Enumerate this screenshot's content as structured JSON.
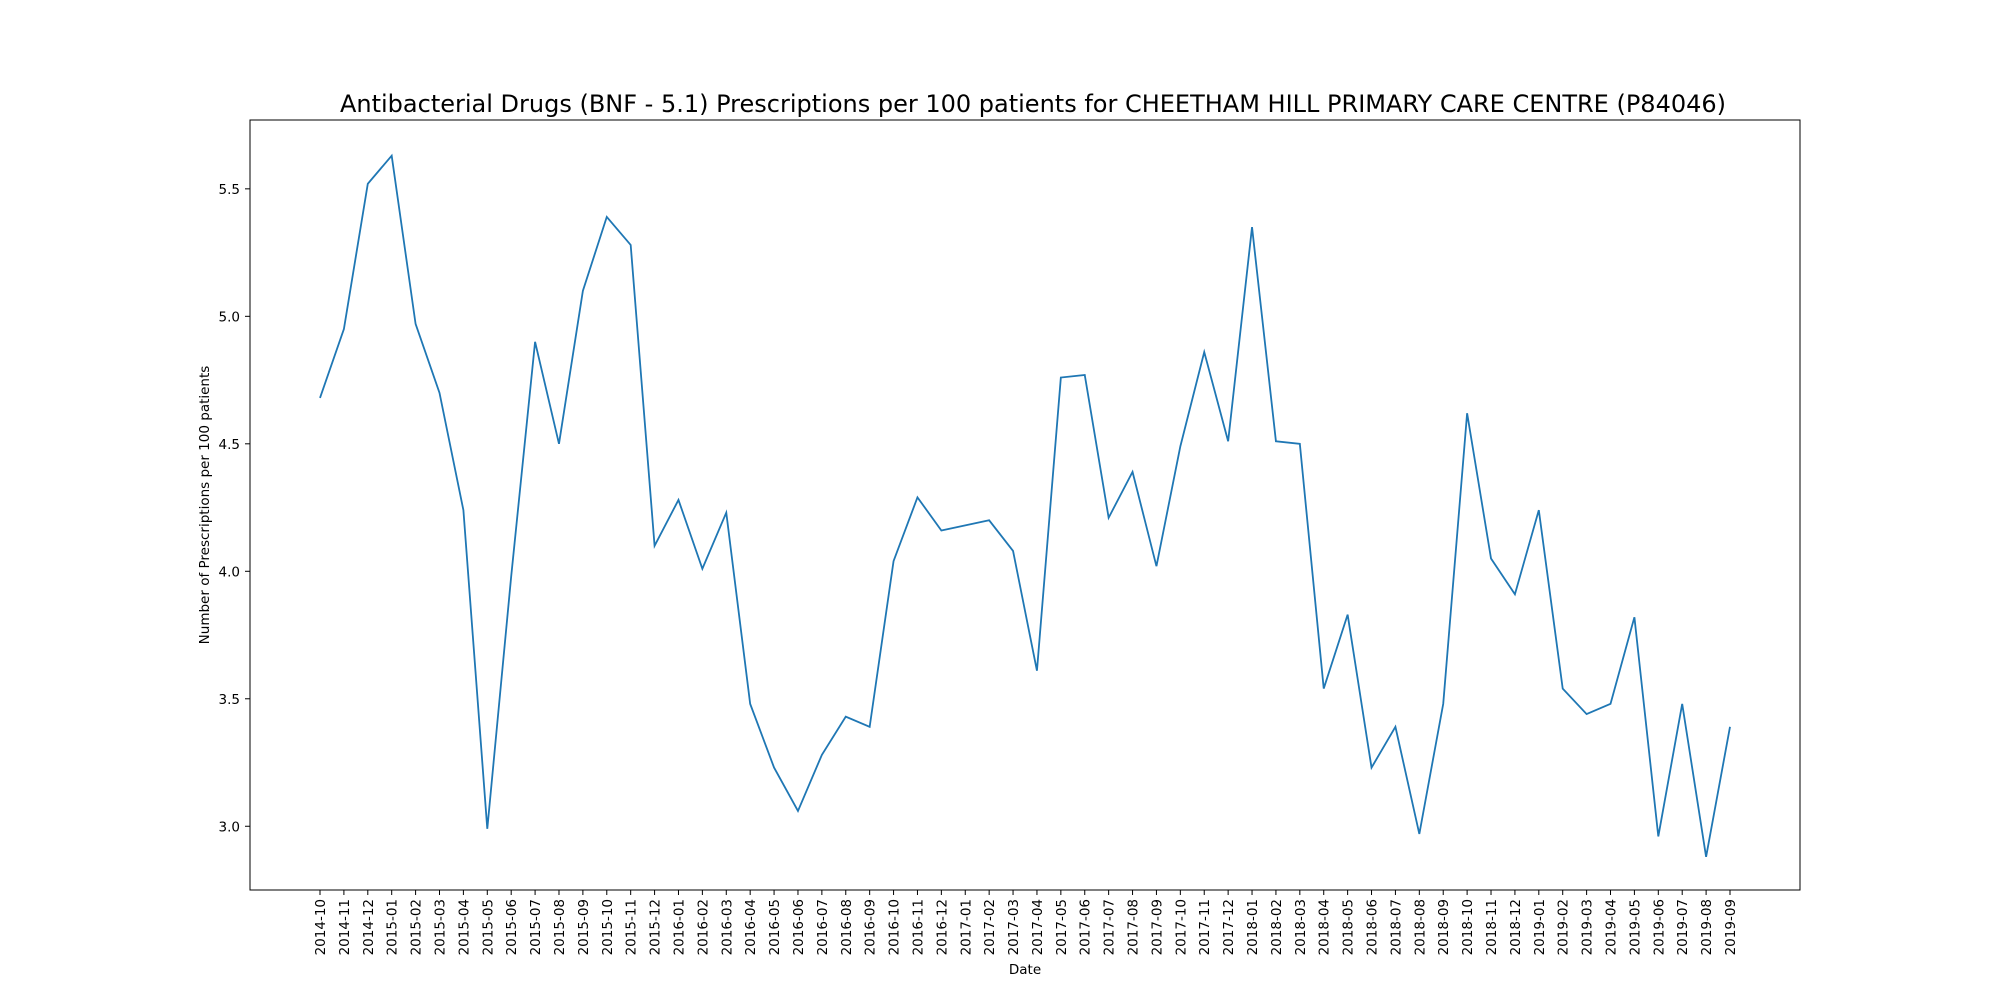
{
  "chart_data": {
    "type": "line",
    "title": "Antibacterial Drugs (BNF - 5.1) Prescriptions per 100 patients for CHEETHAM HILL PRIMARY CARE CENTRE (P84046)",
    "xlabel": "Date",
    "ylabel": "Number of Prescriptions per 100 patients",
    "ylim": [
      2.75,
      5.77
    ],
    "yticks": [
      3.0,
      3.5,
      4.0,
      4.5,
      5.0,
      5.5
    ],
    "ytick_labels": [
      "3.0",
      "3.5",
      "4.0",
      "4.5",
      "5.0",
      "5.5"
    ],
    "grid": false,
    "line_color": "#1f77b4",
    "x": [
      "2014-10",
      "2014-11",
      "2014-12",
      "2015-01",
      "2015-02",
      "2015-03",
      "2015-04",
      "2015-05",
      "2015-06",
      "2015-07",
      "2015-08",
      "2015-09",
      "2015-10",
      "2015-11",
      "2015-12",
      "2016-01",
      "2016-02",
      "2016-03",
      "2016-04",
      "2016-05",
      "2016-06",
      "2016-07",
      "2016-08",
      "2016-09",
      "2016-10",
      "2016-11",
      "2016-12",
      "2017-01",
      "2017-02",
      "2017-03",
      "2017-04",
      "2017-05",
      "2017-06",
      "2017-07",
      "2017-08",
      "2017-09",
      "2017-10",
      "2017-11",
      "2017-12",
      "2018-01",
      "2018-02",
      "2018-03",
      "2018-04",
      "2018-05",
      "2018-06",
      "2018-07",
      "2018-08",
      "2018-09",
      "2018-10",
      "2018-11",
      "2018-12",
      "2019-01",
      "2019-02",
      "2019-03",
      "2019-04",
      "2019-05",
      "2019-06",
      "2019-07",
      "2019-08",
      "2019-09"
    ],
    "values": [
      4.68,
      4.95,
      5.52,
      5.63,
      4.97,
      4.7,
      4.24,
      2.99,
      3.98,
      4.9,
      4.5,
      5.1,
      5.39,
      5.28,
      4.1,
      4.28,
      4.01,
      4.23,
      3.48,
      3.23,
      3.06,
      3.28,
      3.43,
      3.39,
      4.04,
      4.29,
      4.16,
      4.18,
      4.2,
      4.08,
      3.61,
      4.76,
      4.77,
      4.21,
      4.39,
      4.02,
      4.49,
      4.86,
      4.51,
      5.35,
      4.51,
      4.5,
      3.54,
      3.83,
      3.23,
      3.39,
      2.97,
      3.48,
      4.62,
      4.05,
      3.91,
      4.24,
      3.54,
      3.44,
      3.48,
      3.82,
      2.96,
      3.48,
      2.88,
      3.39
    ]
  }
}
